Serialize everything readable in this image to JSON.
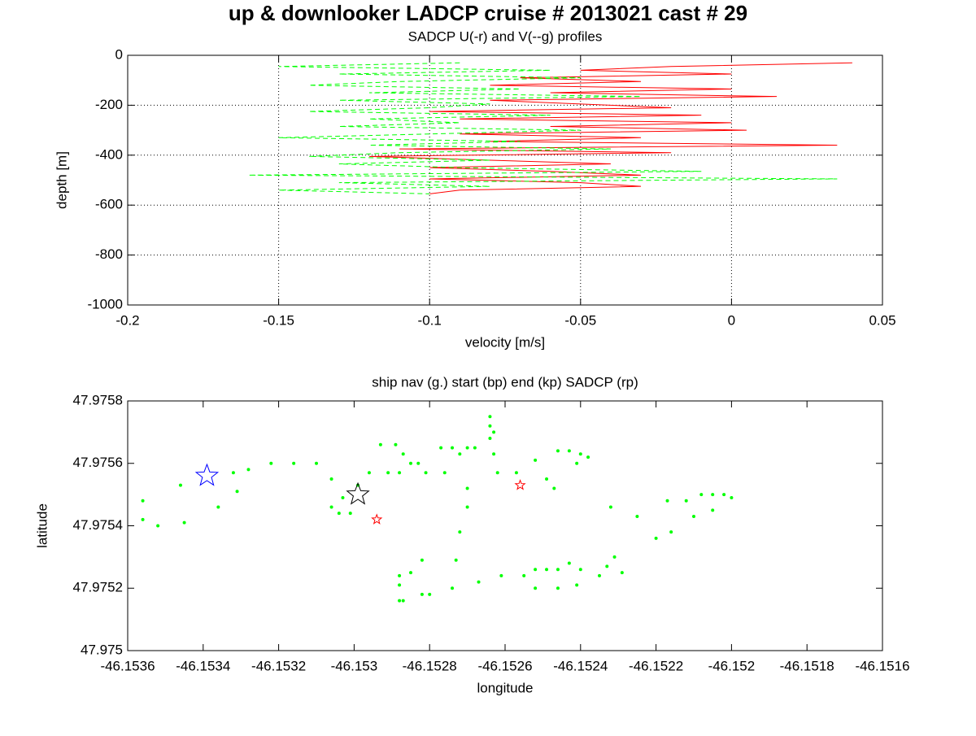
{
  "title": "up & downlooker LADCP cruise # 2013021 cast # 29",
  "chart_data": [
    {
      "type": "line",
      "title": "SADCP U(-r) and V(--g) profiles",
      "xlabel": "velocity [m/s]",
      "ylabel": "depth [m]",
      "xlim": [
        -0.2,
        0.05
      ],
      "xticks": [
        -0.2,
        -0.15,
        -0.1,
        -0.05,
        0,
        0.05
      ],
      "ylim": [
        -1000,
        0
      ],
      "yticks": [
        0,
        -200,
        -400,
        -600,
        -800,
        -1000
      ],
      "grid": true,
      "y": [
        -30,
        -45,
        -60,
        -75,
        -90,
        -105,
        -120,
        -135,
        -150,
        -165,
        -180,
        -195,
        -210,
        -225,
        -240,
        -255,
        -270,
        -285,
        -300,
        -315,
        -330,
        -345,
        -360,
        -375,
        -390,
        -405,
        -420,
        -435,
        -450,
        -465,
        -480,
        -495,
        -510,
        -525,
        -540,
        -555
      ],
      "series": [
        {
          "color": "#ff0000",
          "dashed": false,
          "x": [
            0.04,
            -0.02,
            -0.05,
            0.0,
            -0.07,
            -0.03,
            -0.08,
            0.0,
            -0.06,
            0.015,
            -0.08,
            -0.05,
            -0.02,
            -0.1,
            -0.01,
            -0.09,
            0.0,
            -0.06,
            0.005,
            -0.09,
            -0.03,
            -0.08,
            0.035,
            -0.11,
            -0.02,
            -0.12,
            -0.08,
            -0.04,
            -0.1,
            -0.06,
            -0.03,
            -0.1,
            -0.05,
            -0.03,
            -0.09,
            -0.1
          ]
        },
        {
          "color": "#00ff00",
          "dashed": true,
          "x": [
            -0.09,
            -0.15,
            -0.06,
            -0.13,
            -0.05,
            -0.11,
            -0.14,
            -0.07,
            -0.12,
            -0.03,
            -0.13,
            -0.08,
            -0.1,
            -0.14,
            -0.06,
            -0.12,
            -0.09,
            -0.13,
            -0.05,
            -0.1,
            -0.15,
            -0.07,
            -0.12,
            -0.04,
            -0.11,
            -0.14,
            -0.08,
            -0.13,
            -0.09,
            -0.01,
            -0.16,
            0.035,
            -0.13,
            -0.08,
            -0.15,
            -0.1
          ]
        }
      ]
    },
    {
      "type": "scatter",
      "title": "ship nav (g.) start (bp) end (kp) SADCP (rp)",
      "xlabel": "longitude",
      "ylabel": "latitude",
      "xlim": [
        -46.1536,
        -46.1516
      ],
      "xticks": [
        -46.1536,
        -46.1534,
        -46.1532,
        -46.153,
        -46.1528,
        -46.1526,
        -46.1524,
        -46.1522,
        -46.152,
        -46.1518,
        -46.1516
      ],
      "ylim": [
        47.975,
        47.9758
      ],
      "yticks": [
        47.975,
        47.9752,
        47.9754,
        47.9756,
        47.9758
      ],
      "grid": false,
      "series": [
        {
          "color": "#00ff00",
          "marker": "dot",
          "x": [
            -46.15356,
            -46.15356,
            -46.15352,
            -46.15345,
            -46.15346,
            -46.15336,
            -46.15332,
            -46.15331,
            -46.15328,
            -46.15322,
            -46.15316,
            -46.1531,
            -46.15306,
            -46.15306,
            -46.15304,
            -46.15303,
            -46.15301,
            -46.15299,
            -46.15296,
            -46.15293,
            -46.15291,
            -46.15289,
            -46.15288,
            -46.15287,
            -46.15285,
            -46.15283,
            -46.15281,
            -46.15277,
            -46.15276,
            -46.15274,
            -46.15272,
            -46.1527,
            -46.1527,
            -46.15268,
            -46.15264,
            -46.15264,
            -46.15263,
            -46.15262,
            -46.15257,
            -46.1527,
            -46.15272,
            -46.15273,
            -46.15274,
            -46.15282,
            -46.15285,
            -46.15288,
            -46.15288,
            -46.15288,
            -46.15287,
            -46.15282,
            -46.1528,
            -46.15267,
            -46.15261,
            -46.15255,
            -46.15252,
            -46.15249,
            -46.15246,
            -46.15243,
            -46.1524,
            -46.15235,
            -46.15233,
            -46.15231,
            -46.15229,
            -46.15252,
            -46.15246,
            -46.15241,
            -46.15252,
            -46.15249,
            -46.15247,
            -46.15246,
            -46.15243,
            -46.15241,
            -46.1524,
            -46.15238,
            -46.15232,
            -46.15225,
            -46.1522,
            -46.15216,
            -46.15217,
            -46.15212,
            -46.1521,
            -46.15208,
            -46.15205,
            -46.15205,
            -46.15202,
            -46.152,
            -46.15264,
            -46.15263
          ],
          "y": [
            47.97548,
            47.97542,
            47.9754,
            47.97541,
            47.97553,
            47.97546,
            47.97557,
            47.97551,
            47.97558,
            47.9756,
            47.9756,
            47.9756,
            47.97555,
            47.97546,
            47.97544,
            47.97549,
            47.97544,
            47.97553,
            47.97557,
            47.97566,
            47.97557,
            47.97566,
            47.97557,
            47.97563,
            47.9756,
            47.9756,
            47.97557,
            47.97565,
            47.97557,
            47.97565,
            47.97563,
            47.97552,
            47.97565,
            47.97565,
            47.97572,
            47.97568,
            47.97563,
            47.97557,
            47.97557,
            47.97546,
            47.97538,
            47.97529,
            47.9752,
            47.97529,
            47.97525,
            47.97524,
            47.97521,
            47.97516,
            47.97516,
            47.97518,
            47.97518,
            47.97522,
            47.97524,
            47.97524,
            47.97526,
            47.97526,
            47.97526,
            47.97528,
            47.97526,
            47.97524,
            47.97527,
            47.9753,
            47.97525,
            47.9752,
            47.9752,
            47.97521,
            47.97561,
            47.97555,
            47.97552,
            47.97564,
            47.97564,
            47.9756,
            47.97563,
            47.97562,
            47.97546,
            47.97543,
            47.97536,
            47.97538,
            47.97548,
            47.97548,
            47.97543,
            47.9755,
            47.9755,
            47.97545,
            47.9755,
            47.97549,
            47.97575,
            47.9757
          ]
        },
        {
          "color": "#0000ff",
          "marker": "big-star",
          "x": [
            -46.15339
          ],
          "y": [
            47.97556
          ]
        },
        {
          "color": "#000000",
          "marker": "big-star",
          "x": [
            -46.15299
          ],
          "y": [
            47.9755
          ]
        },
        {
          "color": "#ff0000",
          "marker": "star",
          "x": [
            -46.15294,
            -46.15256
          ],
          "y": [
            47.97542,
            47.97553
          ]
        }
      ]
    }
  ]
}
